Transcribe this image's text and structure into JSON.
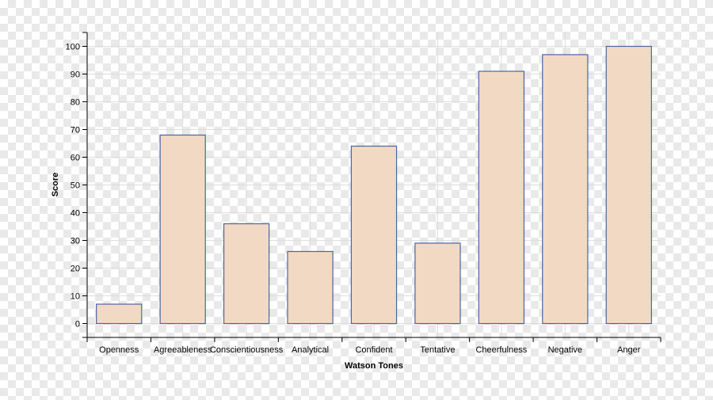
{
  "chart_data": {
    "type": "bar",
    "categories": [
      "Openness",
      "Agreeableness",
      "Conscientiousness",
      "Analytical",
      "Confident",
      "Tentative",
      "Cheerfulness",
      "Negative",
      "Anger"
    ],
    "values": [
      7,
      68,
      36,
      26,
      64,
      29,
      91,
      97,
      100
    ],
    "xlabel": "Watson Tones",
    "ylabel": "Score",
    "ylim": [
      0,
      100
    ],
    "yticks": [
      0,
      10,
      20,
      30,
      40,
      50,
      60,
      70,
      80,
      90,
      100
    ],
    "grid": true,
    "colors": {
      "bar_fill": "#f2d9c3",
      "bar_stroke": "#4a65a6",
      "grid": "#dddddd",
      "axis": "#000000"
    }
  }
}
